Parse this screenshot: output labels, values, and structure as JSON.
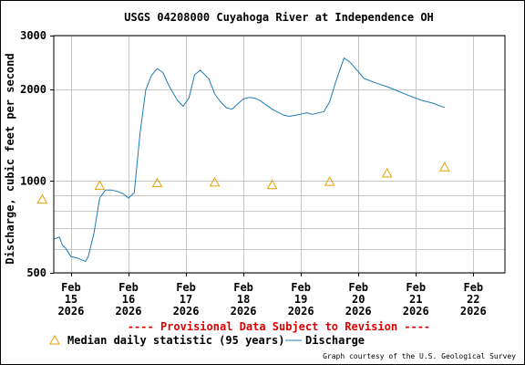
{
  "chart_data": {
    "type": "line",
    "title": "USGS 04208000 Cuyahoga River at Independence OH",
    "ylabel": "Discharge, cubic feet per second",
    "xlabel": "",
    "y_scale": "log",
    "ylim": [
      500,
      3000
    ],
    "y_ticks": [
      {
        "value": 500,
        "label": "500"
      },
      {
        "value": 1000,
        "label": "1000"
      },
      {
        "value": 2000,
        "label": "2000"
      },
      {
        "value": 3000,
        "label": "3000"
      }
    ],
    "y_minor_gridlines": [
      600,
      700,
      800,
      900
    ],
    "xlim": [
      0.7,
      8.55
    ],
    "x_ticks": [
      {
        "value": 1,
        "line1": "Feb",
        "line2": "15",
        "line3": "2026"
      },
      {
        "value": 2,
        "line1": "Feb",
        "line2": "16",
        "line3": "2026"
      },
      {
        "value": 3,
        "line1": "Feb",
        "line2": "17",
        "line3": "2026"
      },
      {
        "value": 4,
        "line1": "Feb",
        "line2": "18",
        "line3": "2026"
      },
      {
        "value": 5,
        "line1": "Feb",
        "line2": "19",
        "line3": "2026"
      },
      {
        "value": 6,
        "line1": "Feb",
        "line2": "20",
        "line3": "2026"
      },
      {
        "value": 7,
        "line1": "Feb",
        "line2": "21",
        "line3": "2026"
      },
      {
        "value": 8,
        "line1": "Feb",
        "line2": "22",
        "line3": "2026"
      }
    ],
    "grid": true,
    "series": [
      {
        "name": "Discharge",
        "color": "#1f7bb6",
        "style": "line",
        "points": [
          [
            0.7,
            645
          ],
          [
            0.8,
            655
          ],
          [
            0.85,
            615
          ],
          [
            0.9,
            605
          ],
          [
            1.0,
            565
          ],
          [
            1.1,
            560
          ],
          [
            1.2,
            550
          ],
          [
            1.25,
            545
          ],
          [
            1.3,
            565
          ],
          [
            1.4,
            675
          ],
          [
            1.5,
            880
          ],
          [
            1.6,
            935
          ],
          [
            1.7,
            935
          ],
          [
            1.8,
            925
          ],
          [
            1.9,
            910
          ],
          [
            2.0,
            880
          ],
          [
            2.1,
            915
          ],
          [
            2.2,
            1430
          ],
          [
            2.3,
            1990
          ],
          [
            2.4,
            2220
          ],
          [
            2.5,
            2340
          ],
          [
            2.6,
            2270
          ],
          [
            2.7,
            2060
          ],
          [
            2.85,
            1840
          ],
          [
            2.95,
            1760
          ],
          [
            3.05,
            1870
          ],
          [
            3.15,
            2230
          ],
          [
            3.25,
            2310
          ],
          [
            3.4,
            2160
          ],
          [
            3.5,
            1930
          ],
          [
            3.6,
            1820
          ],
          [
            3.7,
            1740
          ],
          [
            3.8,
            1720
          ],
          [
            3.9,
            1790
          ],
          [
            4.0,
            1860
          ],
          [
            4.1,
            1880
          ],
          [
            4.2,
            1870
          ],
          [
            4.3,
            1830
          ],
          [
            4.5,
            1720
          ],
          [
            4.7,
            1645
          ],
          [
            4.8,
            1630
          ],
          [
            4.95,
            1650
          ],
          [
            5.1,
            1675
          ],
          [
            5.2,
            1655
          ],
          [
            5.4,
            1690
          ],
          [
            5.5,
            1820
          ],
          [
            5.6,
            2100
          ],
          [
            5.75,
            2530
          ],
          [
            5.85,
            2460
          ],
          [
            5.95,
            2340
          ],
          [
            6.1,
            2170
          ],
          [
            6.3,
            2100
          ],
          [
            6.5,
            2040
          ],
          [
            6.7,
            1970
          ],
          [
            6.9,
            1900
          ],
          [
            7.1,
            1840
          ],
          [
            7.3,
            1800
          ],
          [
            7.45,
            1755
          ],
          [
            7.5,
            1745
          ]
        ]
      },
      {
        "name": "Median daily statistic (95 years)",
        "color": "#e6a100",
        "style": "triangle-markers",
        "points": [
          [
            0.5,
            870
          ],
          [
            1.5,
            965
          ],
          [
            2.5,
            985
          ],
          [
            3.5,
            990
          ],
          [
            4.5,
            970
          ],
          [
            5.5,
            995
          ],
          [
            6.5,
            1060
          ],
          [
            7.5,
            1110
          ]
        ]
      }
    ],
    "annotation": "---- Provisional Data Subject to Revision ----",
    "legend_placement": "bottom",
    "credit": "Graph courtesy of the U.S. Geological Survey"
  },
  "legend": {
    "median_label": "Median daily statistic (95 years)",
    "discharge_label": "Discharge"
  },
  "colors": {
    "discharge": "#1f7bb6",
    "median": "#e6a100",
    "provisional": "#dd0000",
    "grid": "#c8c8c8"
  }
}
